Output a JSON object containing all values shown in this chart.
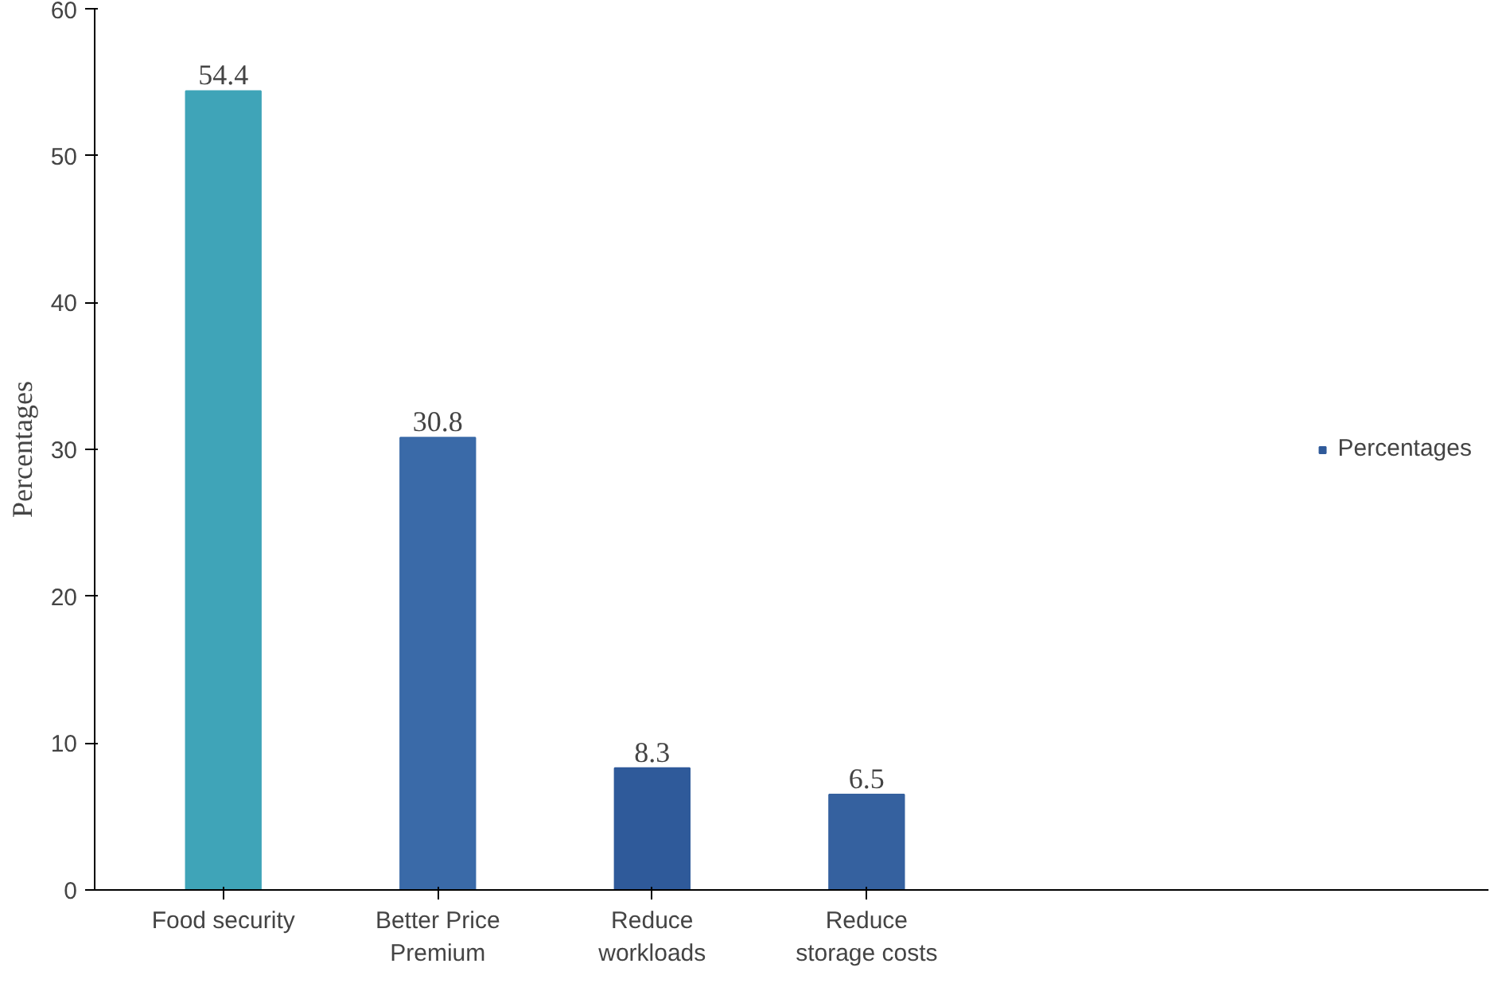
{
  "chart_data": {
    "type": "bar",
    "ylabel": "Percentages",
    "categories": [
      "Food security",
      "Better Price\nPremium",
      "Reduce\nworkloads",
      "Reduce\nstorage costs"
    ],
    "series": [
      {
        "name": "Percentages",
        "color": "#2f5a9a",
        "colors": [
          "#3fa4b8",
          "#3a6aa8",
          "#2f5a9a",
          "#35619f"
        ],
        "values": [
          54.4,
          30.8,
          8.3,
          6.5
        ]
      }
    ],
    "ylim": [
      0,
      60
    ],
    "yticks": [
      0,
      10,
      20,
      30,
      40,
      50,
      60
    ],
    "data_labels": true,
    "legend": "right",
    "grid": false
  }
}
